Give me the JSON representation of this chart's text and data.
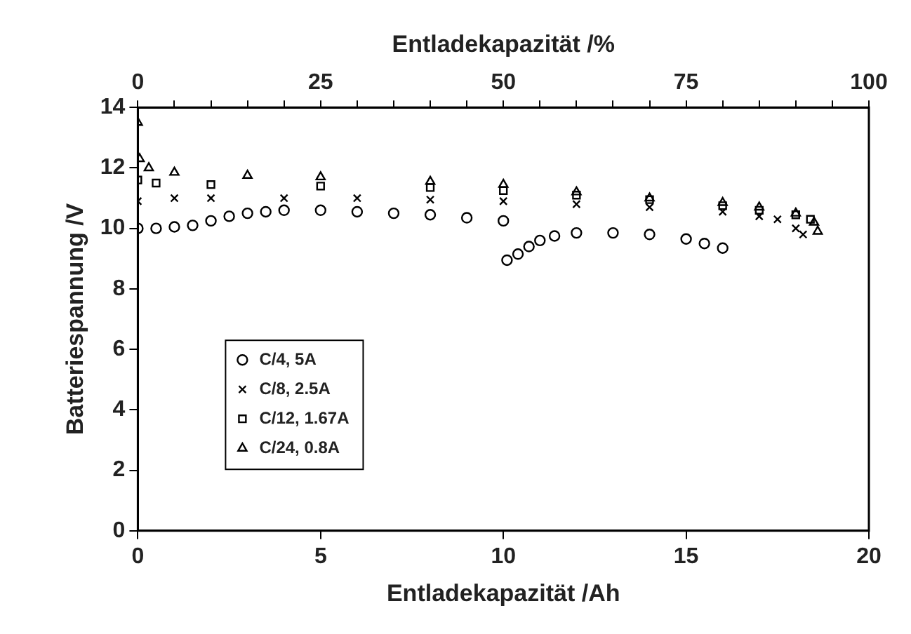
{
  "chart_data": {
    "type": "scatter",
    "xlabel": "Entladekapazität /Ah",
    "ylabel": "Batteriespannung /V",
    "x2label": "Entladekapazität /%",
    "xlim": [
      0,
      20
    ],
    "xticks": [
      0,
      5,
      10,
      15,
      20
    ],
    "x2lim": [
      0,
      100
    ],
    "x2ticks": [
      0,
      {
        "value": 5,
        "label": null
      },
      {
        "value": 10,
        "label": null
      },
      {
        "value": 15,
        "label": null
      },
      {
        "value": 20,
        "label": null
      },
      25,
      {
        "value": 30,
        "label": null
      },
      {
        "value": 35,
        "label": null
      },
      {
        "value": 40,
        "label": null
      },
      {
        "value": 45,
        "label": null
      },
      50,
      {
        "value": 55,
        "label": null
      },
      {
        "value": 60,
        "label": null
      },
      {
        "value": 65,
        "label": null
      },
      {
        "value": 70,
        "label": null
      },
      75,
      {
        "value": 80,
        "label": null
      },
      {
        "value": 85,
        "label": null
      },
      {
        "value": 90,
        "label": null
      },
      {
        "value": 95,
        "label": null
      },
      100
    ],
    "ylim": [
      0,
      14
    ],
    "yticks": [
      0,
      2,
      4,
      6,
      8,
      10,
      12,
      14
    ],
    "grid": false,
    "legend": "left",
    "series": [
      {
        "name": "C/4, 5A",
        "color": "#000000",
        "marker": "circle",
        "x": [
          0,
          0.5,
          1,
          1.5,
          2,
          2.5,
          3,
          3.5,
          4,
          5,
          6,
          7,
          8,
          9,
          10,
          10.1,
          10.4,
          10.7,
          11,
          11.4,
          12,
          13,
          14,
          15,
          15.5,
          16
        ],
        "values": [
          10.0,
          10.0,
          10.05,
          10.1,
          10.25,
          10.4,
          10.5,
          10.55,
          10.6,
          10.6,
          10.55,
          10.5,
          10.45,
          10.35,
          10.25,
          8.95,
          9.15,
          9.4,
          9.6,
          9.75,
          9.85,
          9.85,
          9.8,
          9.65,
          9.5,
          9.35
        ]
      },
      {
        "name": "C/8, 2.5A",
        "color": "#000000",
        "marker": "cross",
        "x": [
          0,
          1,
          2,
          4,
          6,
          8,
          10,
          12,
          14,
          16,
          17,
          17.5,
          18,
          18.2
        ],
        "values": [
          10.9,
          11.0,
          11.0,
          11.0,
          11.0,
          10.95,
          10.9,
          10.8,
          10.7,
          10.55,
          10.4,
          10.3,
          10.0,
          9.8
        ]
      },
      {
        "name": "C/12, 1.67A",
        "color": "#000000",
        "marker": "square",
        "x": [
          0,
          0.5,
          2,
          5,
          8,
          10,
          12,
          14,
          16,
          17,
          18,
          18.4
        ],
        "values": [
          11.6,
          11.5,
          11.45,
          11.4,
          11.35,
          11.25,
          11.1,
          10.95,
          10.75,
          10.6,
          10.45,
          10.3
        ]
      },
      {
        "name": "C/24, 0.8A",
        "color": "#000000",
        "marker": "triangle",
        "x": [
          0,
          0.05,
          0.3,
          1,
          3,
          5,
          8,
          10,
          12,
          14,
          16,
          17,
          18,
          18.5,
          18.6
        ],
        "values": [
          13.5,
          12.3,
          12.0,
          11.85,
          11.75,
          11.7,
          11.55,
          11.45,
          11.2,
          11.0,
          10.85,
          10.7,
          10.5,
          10.2,
          9.9
        ]
      }
    ]
  }
}
